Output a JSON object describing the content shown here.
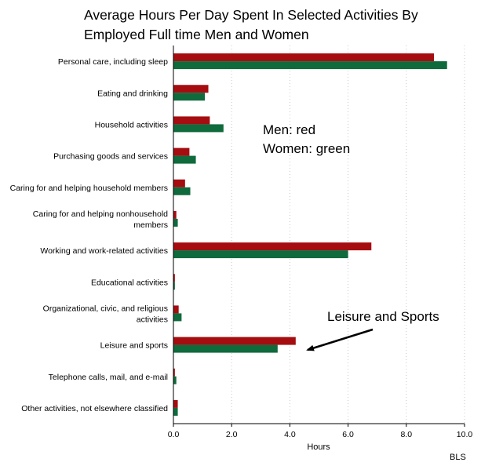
{
  "chart_data": {
    "type": "bar",
    "orientation": "horizontal",
    "title": [
      "Average Hours Per Day Spent In Selected Activities By",
      "Employed Full time Men and Women"
    ],
    "xlabel": "Hours",
    "ylabel": "",
    "xlim": [
      0,
      10
    ],
    "x_ticks": [
      "0.0",
      "2.0",
      "4.0",
      "6.0",
      "8.0",
      "10.0"
    ],
    "grid": "vertical dotted",
    "categories": [
      [
        "Personal care, including sleep"
      ],
      [
        "Eating and drinking"
      ],
      [
        "Household activities"
      ],
      [
        "Purchasing goods and services"
      ],
      [
        "Caring for and helping household members"
      ],
      [
        "Caring for and helping nonhousehold",
        "members"
      ],
      [
        "Working and work-related activities"
      ],
      [
        "Educational activities"
      ],
      [
        "Organizational, civic, and religious",
        "activities"
      ],
      [
        "Leisure and sports"
      ],
      [
        "Telephone calls, mail, and e-mail"
      ],
      [
        "Other activities, not elsewhere classified"
      ]
    ],
    "series": [
      {
        "color": "#a50d10",
        "values": [
          8.95,
          1.2,
          1.25,
          0.55,
          0.4,
          0.1,
          6.8,
          0.05,
          0.18,
          4.2,
          0.05,
          0.15
        ]
      },
      {
        "color": "#0f6a3c",
        "values": [
          9.4,
          1.08,
          1.72,
          0.77,
          0.58,
          0.15,
          6.0,
          0.05,
          0.28,
          3.58,
          0.1,
          0.15
        ]
      }
    ],
    "annotations": {
      "legend_note": [
        "Men: red",
        "Women: green"
      ],
      "arrow_label": "Leisure and Sports",
      "arrow_target_category": "Leisure and sports"
    },
    "source": "BLS"
  }
}
